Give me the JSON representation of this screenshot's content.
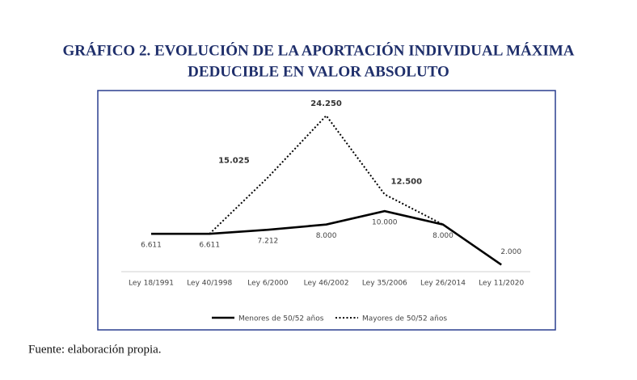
{
  "chart_data": {
    "type": "line",
    "title": "GRÁFICO 2. EVOLUCIÓN DE LA APORTACIÓN INDIVIDUAL MÁXIMA",
    "subtitle": "DEDUCIBLE EN VALOR ABSOLUTO",
    "source": "Fuente: elaboración propia.",
    "categories": [
      "Ley 18/1991",
      "Ley 40/1998",
      "Ley 6/2000",
      "Ley 46/2002",
      "Ley 35/2006",
      "Ley 26/2014",
      "Ley 11/2020"
    ],
    "series": [
      {
        "name": "Menores de 50/52 años",
        "color": "#000000",
        "style": "solid",
        "values": [
          6611,
          6611,
          7212,
          8000,
          10000,
          8000,
          2000
        ],
        "value_labels": [
          "6.611",
          "6.611",
          "7.212",
          "8.000",
          "10.000",
          "8.000",
          "2.000"
        ]
      },
      {
        "name": "Mayores de 50/52 años",
        "color": "#000000",
        "style": "dotted",
        "values": [
          null,
          6611,
          15025,
          24250,
          12500,
          8000,
          null
        ],
        "value_labels": [
          null,
          null,
          "15.025",
          "24.250",
          "12.500",
          null,
          null
        ]
      }
    ]
  }
}
